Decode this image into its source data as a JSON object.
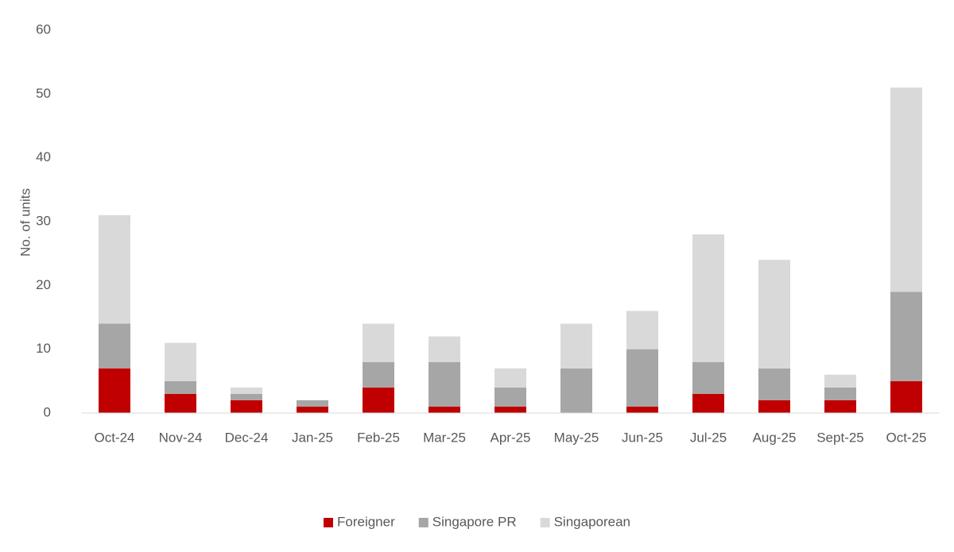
{
  "chart_data": {
    "type": "stacked_bar",
    "y_label": "No. of units",
    "categories": [
      "Oct-24",
      "Nov-24",
      "Dec-24",
      "Jan-25",
      "Feb-25",
      "Mar-25",
      "Apr-25",
      "May-25",
      "Jun-25",
      "Jul-25",
      "Aug-25",
      "Sept-25",
      "Oct-25"
    ],
    "series": [
      {
        "name": "Foreigner",
        "color": "#c00000",
        "values": [
          7,
          3,
          2,
          1,
          4,
          1,
          1,
          0,
          1,
          3,
          2,
          2,
          5
        ]
      },
      {
        "name": "Singapore PR",
        "color": "#a6a6a6",
        "values": [
          7,
          2,
          1,
          1,
          4,
          7,
          3,
          7,
          9,
          5,
          5,
          2,
          14
        ]
      },
      {
        "name": "Singaporean",
        "color": "#d9d9d9",
        "values": [
          17,
          6,
          1,
          0,
          6,
          4,
          3,
          7,
          6,
          20,
          17,
          2,
          32
        ]
      }
    ],
    "ylim": [
      0,
      60
    ],
    "yticks": [
      0,
      10,
      20,
      30,
      40,
      50,
      60
    ],
    "grid": false,
    "legend": "bottom"
  }
}
